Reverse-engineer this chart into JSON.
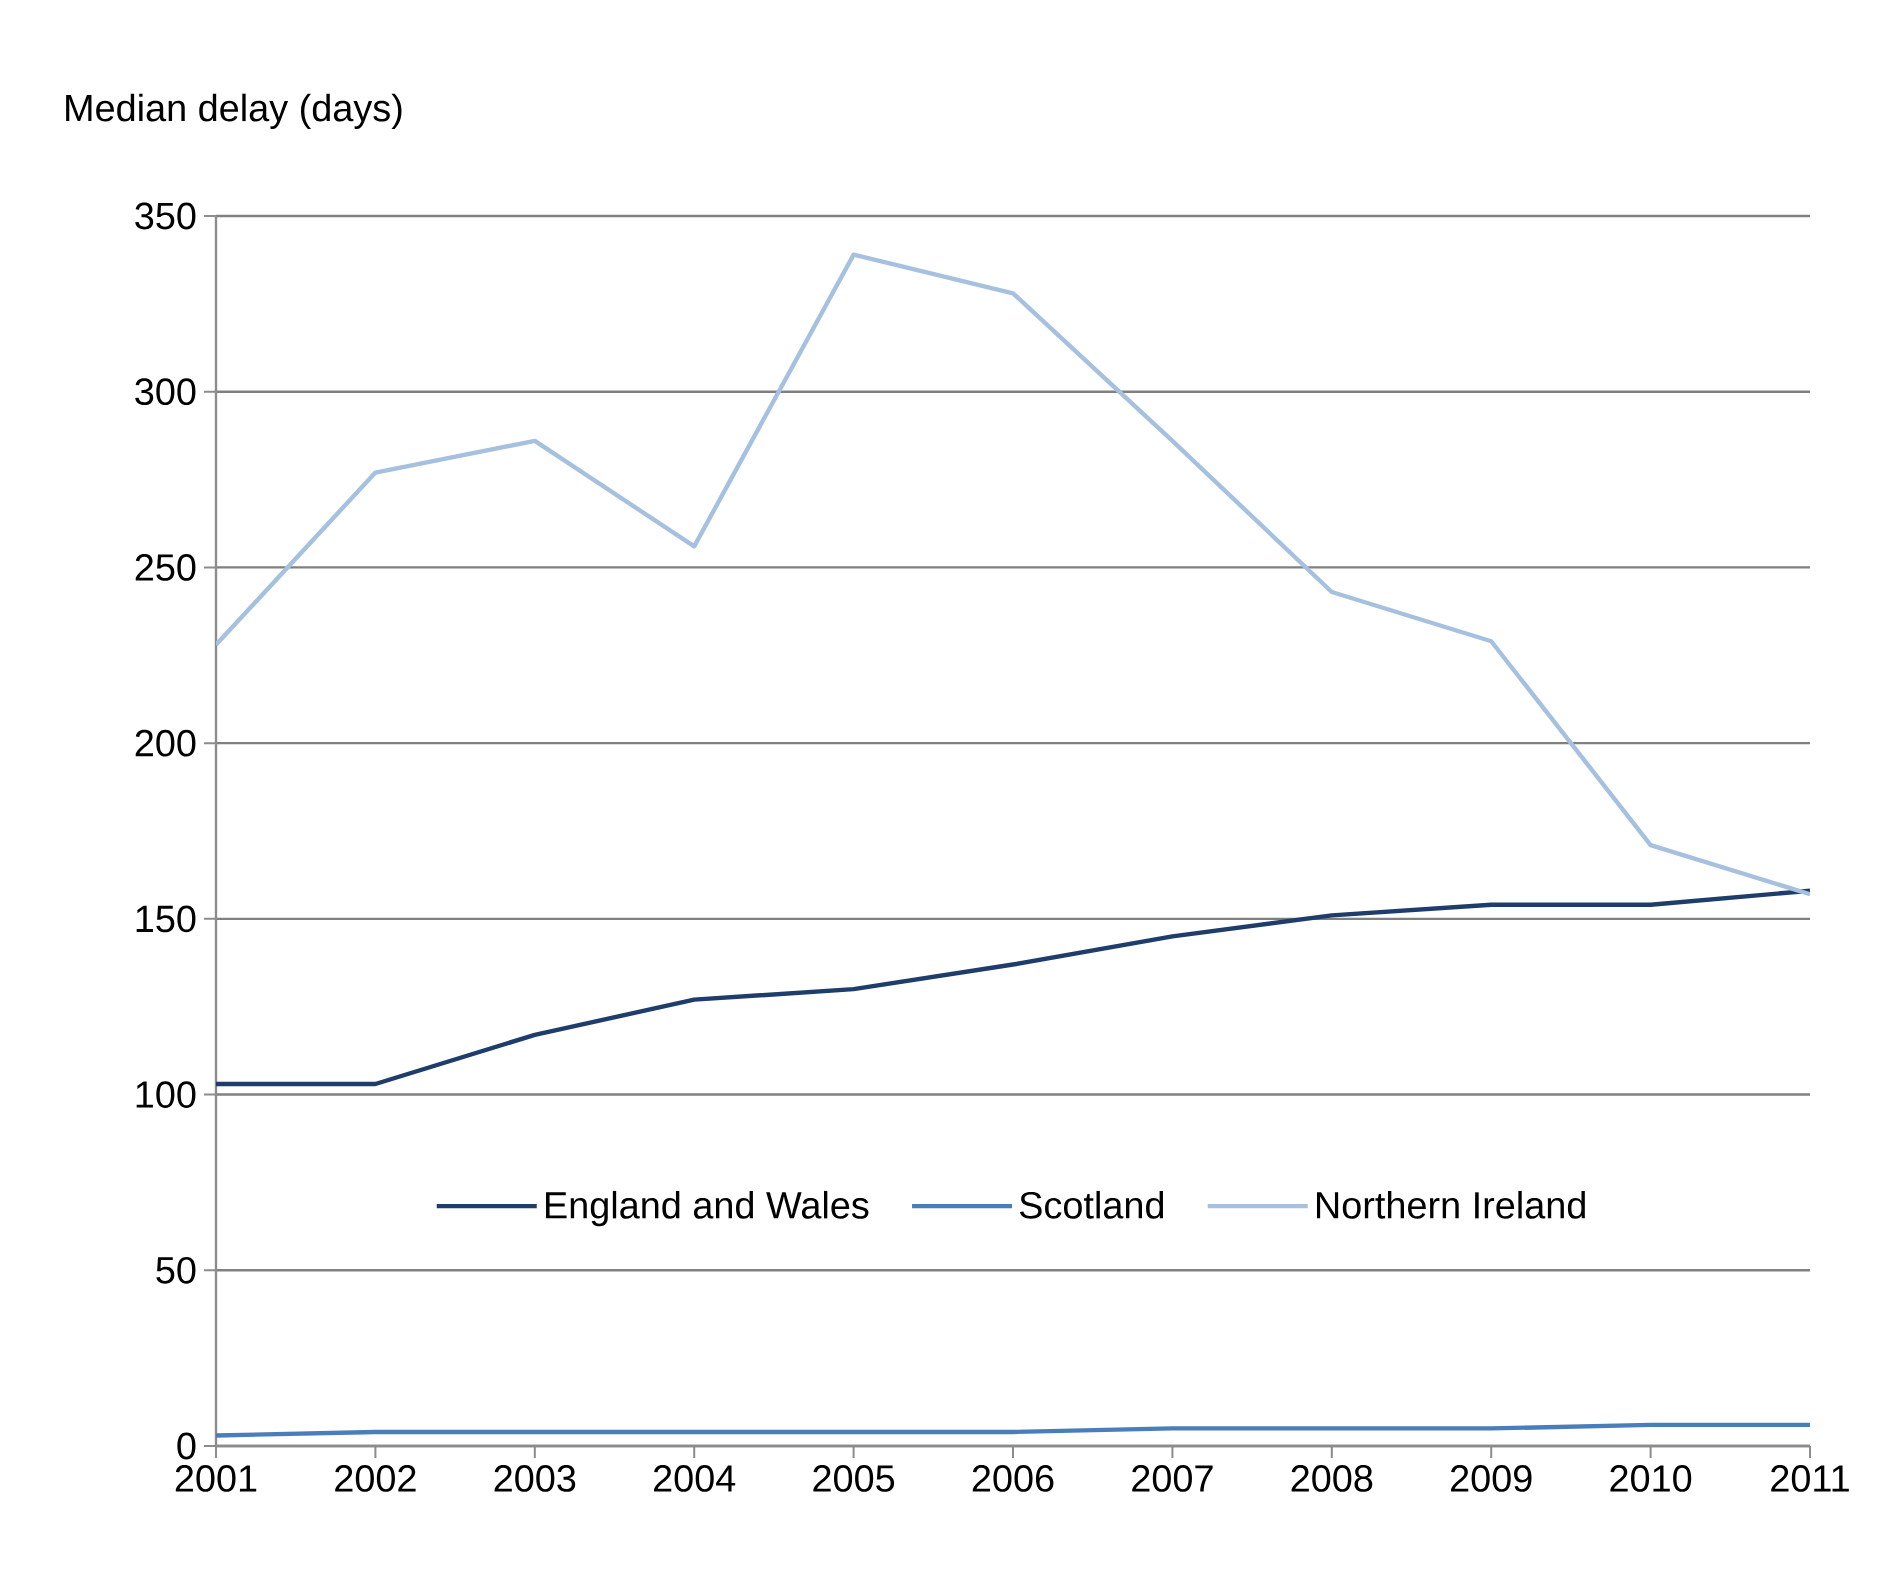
{
  "chart_data": {
    "type": "line",
    "ylabel": "Median delay (days)",
    "categories": [
      "2001",
      "2002",
      "2003",
      "2004",
      "2005",
      "2006",
      "2007",
      "2008",
      "2009",
      "2010",
      "2011"
    ],
    "series": [
      {
        "name": "England and Wales",
        "color": "#1f3d6b",
        "values": [
          103,
          103,
          117,
          127,
          130,
          137,
          145,
          151,
          154,
          154,
          158
        ]
      },
      {
        "name": "Scotland",
        "color": "#4a7ebb",
        "values": [
          3,
          4,
          4,
          4,
          4,
          4,
          5,
          5,
          5,
          6,
          6
        ]
      },
      {
        "name": "Northern Ireland",
        "color": "#a6c0e0",
        "values": [
          228,
          277,
          286,
          256,
          339,
          328,
          286,
          243,
          229,
          171,
          157
        ]
      }
    ],
    "ylim": [
      0,
      350
    ],
    "yticks": [
      0,
      50,
      100,
      150,
      200,
      250,
      300,
      350
    ],
    "grid": "y",
    "legend": "bottom",
    "marker": "none",
    "line_style": "solid"
  }
}
